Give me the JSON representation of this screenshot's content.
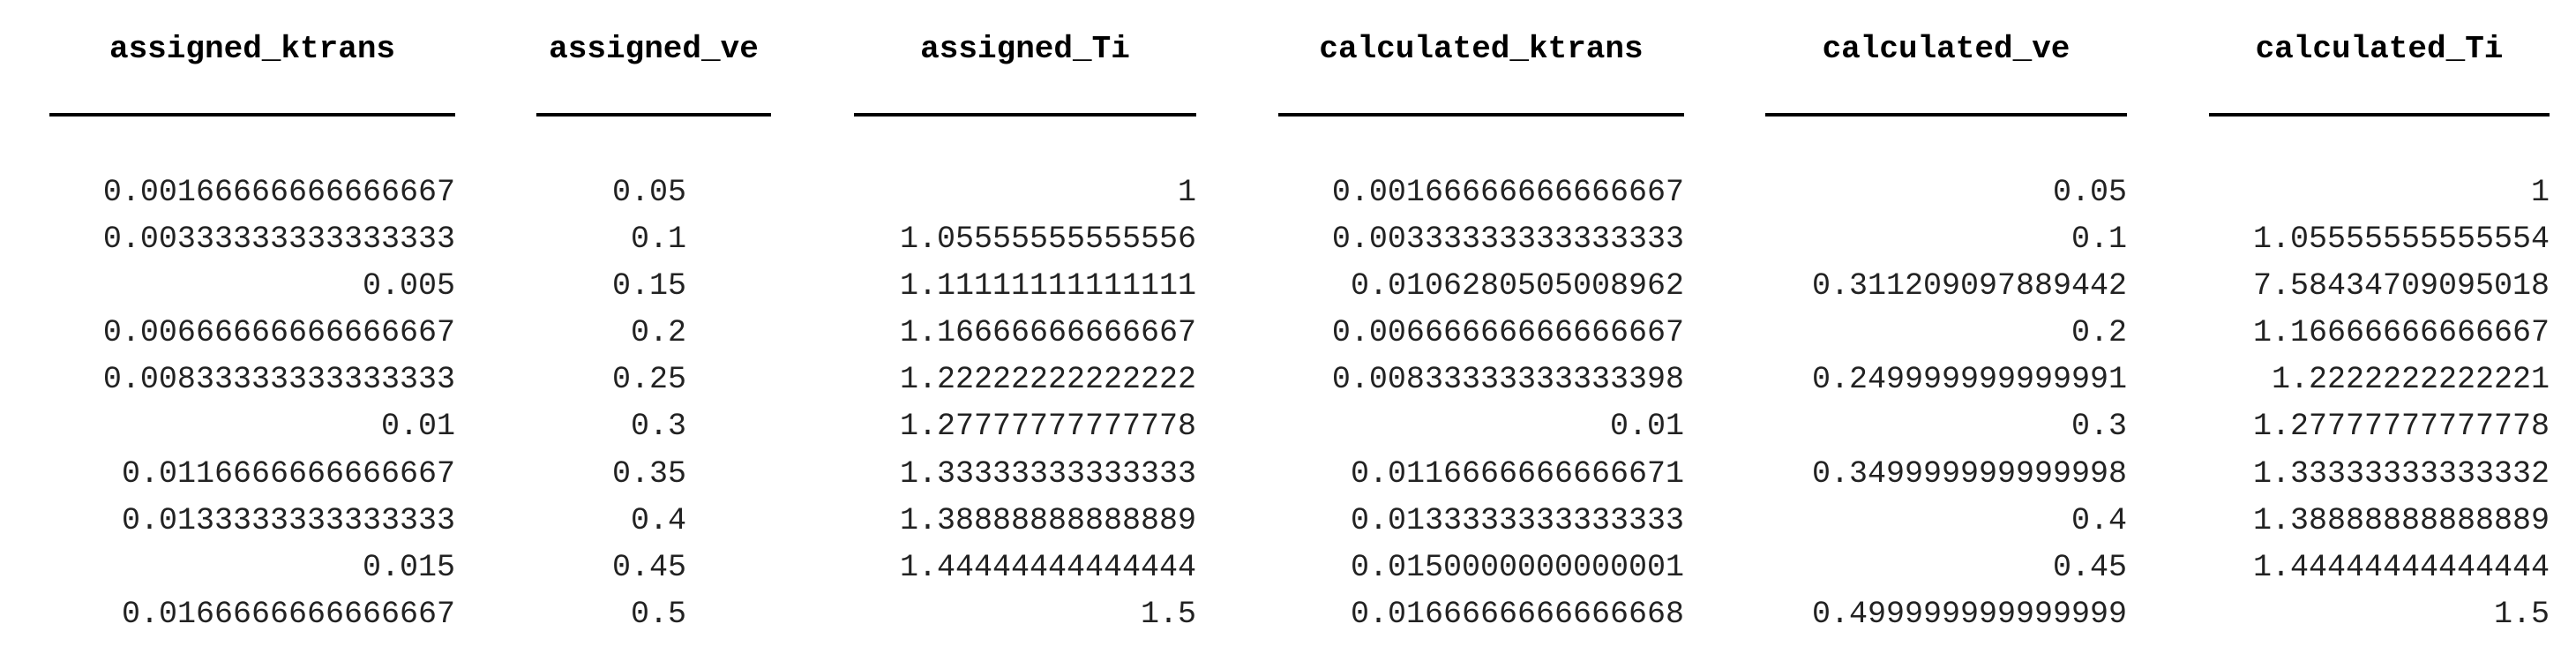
{
  "table": {
    "columns": [
      "assigned_ktrans",
      "assigned_ve",
      "assigned_Ti",
      "calculated_ktrans",
      "calculated_ve",
      "calculated_Ti"
    ],
    "rows": [
      [
        "0.00166666666666667",
        "0.05",
        "1",
        "0.00166666666666667",
        "0.05",
        "1"
      ],
      [
        "0.00333333333333333",
        "0.1",
        "1.05555555555556",
        "0.00333333333333333",
        "0.1",
        "1.05555555555554"
      ],
      [
        "0.005",
        "0.15",
        "1.11111111111111",
        "0.0106280505008962",
        "0.311209097889442",
        "7.58434709095018"
      ],
      [
        "0.00666666666666667",
        "0.2",
        "1.16666666666667",
        "0.00666666666666667",
        "0.2",
        "1.16666666666667"
      ],
      [
        "0.00833333333333333",
        "0.25",
        "1.22222222222222",
        "0.00833333333333398",
        "0.249999999999991",
        "1.2222222222221"
      ],
      [
        "0.01",
        "0.3",
        "1.27777777777778",
        "0.01",
        "0.3",
        "1.27777777777778"
      ],
      [
        "0.0116666666666667",
        "0.35",
        "1.33333333333333",
        "0.0116666666666671",
        "0.349999999999998",
        "1.33333333333332"
      ],
      [
        "0.0133333333333333",
        "0.4",
        "1.38888888888889",
        "0.0133333333333333",
        "0.4",
        "1.38888888888889"
      ],
      [
        "0.015",
        "0.45",
        "1.44444444444444",
        "0.0150000000000001",
        "0.45",
        "1.44444444444444"
      ],
      [
        "0.0166666666666667",
        "0.5",
        "1.5",
        "0.0166666666666668",
        "0.499999999999999",
        "1.5"
      ]
    ]
  }
}
